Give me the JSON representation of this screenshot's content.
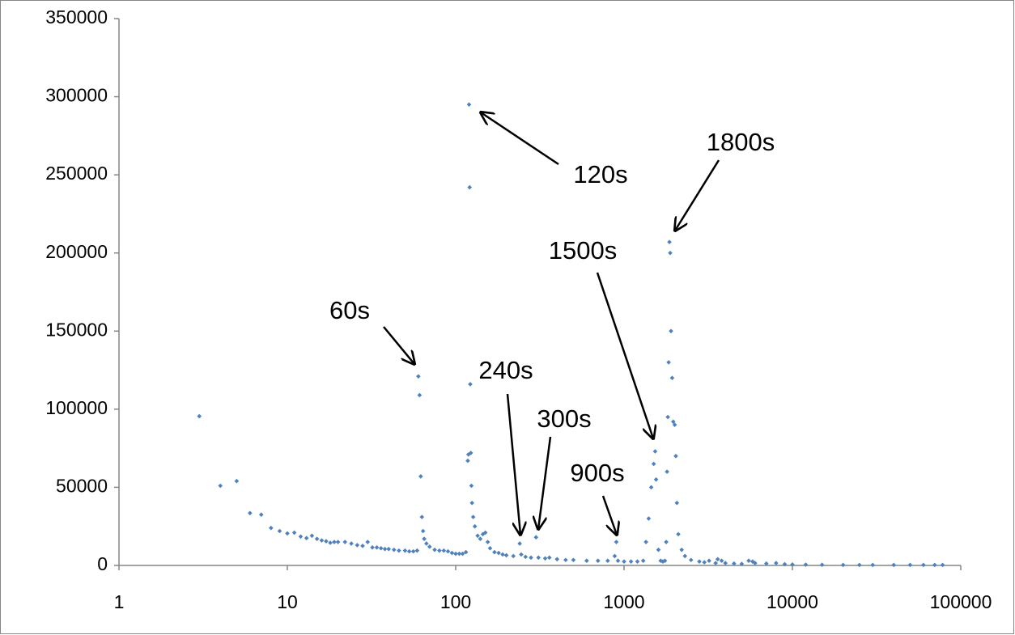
{
  "chart_data": {
    "type": "scatter",
    "log_x": true,
    "color": "#4f81bd",
    "annotations": [
      "120s",
      "1800s",
      "1500s",
      "60s",
      "240s",
      "300s",
      "900s"
    ],
    "xlim": [
      1,
      100000
    ],
    "xticks": [
      1,
      10,
      100,
      1000,
      10000,
      100000
    ],
    "ylim": [
      0,
      350000
    ],
    "yticks": [
      0,
      50000,
      100000,
      150000,
      200000,
      250000,
      300000,
      350000
    ],
    "series": [
      {
        "color": "#4f81bd",
        "x": [
          3,
          4,
          5,
          6,
          7,
          8,
          9,
          10,
          11,
          12,
          13,
          14,
          15,
          16,
          17,
          18,
          19,
          20,
          22,
          24,
          26,
          28,
          30,
          32,
          34,
          36,
          38,
          40,
          43,
          46,
          50,
          53,
          56,
          59,
          60,
          61,
          62,
          63,
          64,
          65,
          67,
          70,
          75,
          80,
          85,
          90,
          95,
          100,
          105,
          110,
          115,
          118,
          119,
          120,
          121,
          122,
          123,
          124,
          125,
          127,
          130,
          135,
          140,
          145,
          150,
          155,
          160,
          170,
          180,
          190,
          200,
          220,
          240,
          245,
          260,
          280,
          300,
          310,
          340,
          360,
          400,
          450,
          500,
          600,
          700,
          800,
          880,
          900,
          920,
          1000,
          1100,
          1200,
          1300,
          1350,
          1400,
          1450,
          1500,
          1530,
          1550,
          1600,
          1650,
          1700,
          1750,
          1780,
          1800,
          1820,
          1840,
          1860,
          1880,
          1900,
          1930,
          1960,
          2000,
          2030,
          2060,
          2100,
          2200,
          2300,
          2500,
          2800,
          3000,
          3200,
          3500,
          3600,
          3800,
          4000,
          4500,
          5000,
          5500,
          5800,
          6000,
          7000,
          8000,
          9000,
          10000,
          12000,
          15000,
          20000,
          25000,
          30000,
          40000,
          50000,
          60000,
          70000,
          78000
        ],
        "values": [
          95500,
          51000,
          54000,
          33500,
          32500,
          24000,
          22000,
          20500,
          21000,
          18500,
          17500,
          19000,
          17000,
          16000,
          15500,
          14500,
          15000,
          15000,
          15000,
          14000,
          13000,
          12500,
          15000,
          11500,
          11500,
          11000,
          10500,
          10500,
          10000,
          9500,
          9500,
          9000,
          9000,
          9500,
          121000,
          109000,
          57000,
          31000,
          22000,
          17000,
          14000,
          12000,
          10000,
          9500,
          9500,
          9000,
          8000,
          7500,
          7500,
          7500,
          8500,
          67000,
          71000,
          295000,
          242000,
          116000,
          72000,
          51000,
          40000,
          31000,
          25000,
          19000,
          17000,
          20000,
          21000,
          15000,
          11000,
          8500,
          8000,
          7000,
          6500,
          6000,
          14000,
          7000,
          5500,
          5000,
          18000,
          5000,
          4500,
          5000,
          4000,
          3500,
          3500,
          3000,
          3000,
          3000,
          6000,
          15000,
          3000,
          2500,
          2500,
          2500,
          3000,
          15000,
          30000,
          50000,
          65000,
          73000,
          55000,
          10000,
          3000,
          2500,
          3000,
          15000,
          60000,
          95000,
          130000,
          207000,
          200000,
          150000,
          120000,
          92000,
          90000,
          70000,
          40000,
          20000,
          10000,
          6000,
          3500,
          2500,
          2000,
          3000,
          1500,
          4000,
          3000,
          1500,
          1200,
          1000,
          3000,
          2500,
          1500,
          1200,
          1500,
          800,
          600,
          500,
          400,
          300,
          300,
          300,
          300,
          300,
          300,
          300,
          300
        ]
      }
    ]
  }
}
